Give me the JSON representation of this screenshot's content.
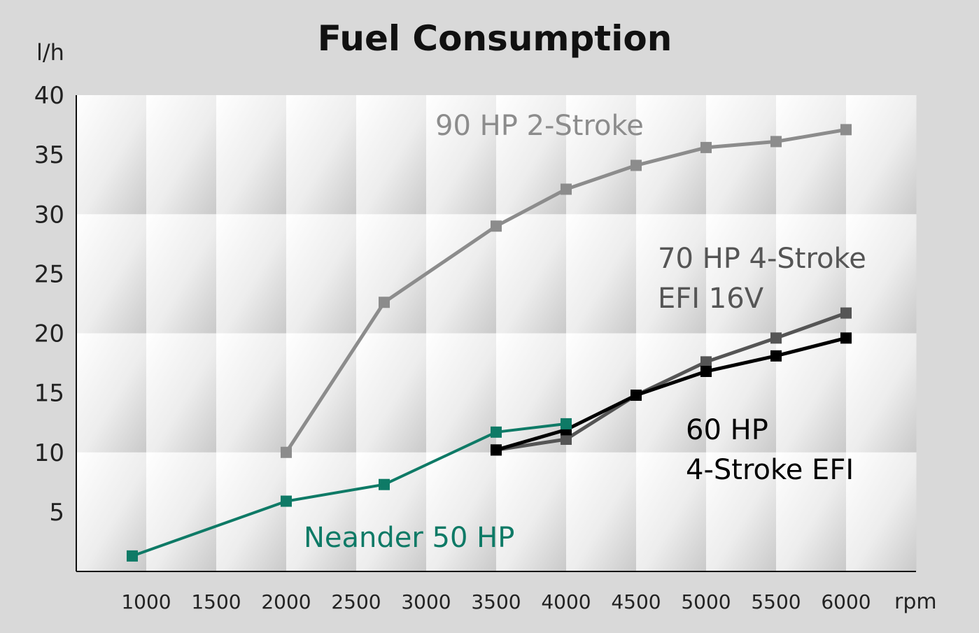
{
  "chart_data": {
    "type": "line",
    "title": "Fuel Consumption",
    "ylabel": "l/h",
    "xlabel": "rpm",
    "xlim": [
      500,
      6500
    ],
    "ylim": [
      0,
      40
    ],
    "x_ticks": [
      1000,
      1500,
      2000,
      2500,
      3000,
      3500,
      4000,
      4500,
      5000,
      5500,
      6000
    ],
    "x_tick_labels": [
      "1000",
      "1500",
      "2000",
      "2500",
      "3000",
      "3500",
      "4000",
      "4500",
      "5000",
      "5500",
      "6000"
    ],
    "y_ticks": [
      5,
      10,
      15,
      20,
      25,
      30,
      35,
      40
    ],
    "y_tick_labels": [
      "5",
      "10",
      "15",
      "20",
      "25",
      "30",
      "35",
      "40"
    ],
    "grid": true,
    "legend": "inline labels",
    "series": [
      {
        "name": "90 HP 2-Stroke",
        "label_lines": [
          "90 HP 2-Stroke"
        ],
        "color": "#8c8c8c",
        "points": [
          [
            2000,
            10
          ],
          [
            2700,
            22.6
          ],
          [
            3500,
            29
          ],
          [
            4000,
            32.1
          ],
          [
            4500,
            34.1
          ],
          [
            5000,
            35.6
          ],
          [
            5500,
            36.1
          ],
          [
            6000,
            37.1
          ]
        ]
      },
      {
        "name": "70 HP 4-Stroke EFI 16V",
        "label_lines": [
          "70 HP 4-Stroke",
          "EFI 16V"
        ],
        "color": "#555555",
        "points": [
          [
            3500,
            10.2
          ],
          [
            4000,
            11.1
          ],
          [
            4500,
            14.8
          ],
          [
            5000,
            17.6
          ],
          [
            5500,
            19.6
          ],
          [
            6000,
            21.7
          ]
        ]
      },
      {
        "name": "60 HP 4-Stroke EFI",
        "label_lines": [
          "60 HP",
          "4-Stroke EFI"
        ],
        "color": "#000000",
        "points": [
          [
            3500,
            10.2
          ],
          [
            4000,
            11.9
          ],
          [
            4500,
            14.8
          ],
          [
            5000,
            16.8
          ],
          [
            5500,
            18.1
          ],
          [
            6000,
            19.6
          ]
        ]
      },
      {
        "name": "Neander 50 HP",
        "label_lines": [
          "Neander 50 HP"
        ],
        "color": "#0e7a66",
        "points": [
          [
            900,
            1.3
          ],
          [
            2000,
            5.9
          ],
          [
            2700,
            7.3
          ],
          [
            3500,
            11.7
          ],
          [
            4000,
            12.4
          ]
        ]
      }
    ]
  }
}
